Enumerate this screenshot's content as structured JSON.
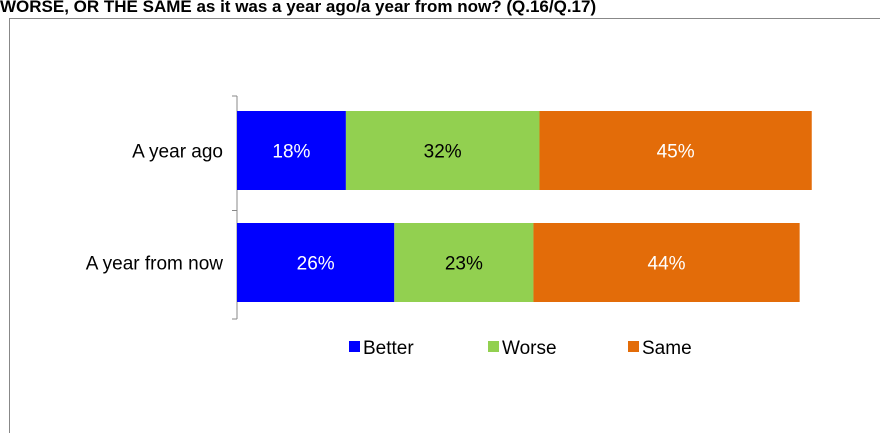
{
  "chart_data": {
    "type": "bar",
    "orientation": "horizontal",
    "stacked": true,
    "title": "WORSE, OR THE SAME as it was a year ago/a year from now? (Q.16/Q.17)",
    "categories": [
      "A year ago",
      "A year from now"
    ],
    "series": [
      {
        "name": "Better",
        "values": [
          18,
          26
        ],
        "labels": [
          "18%",
          "26%"
        ],
        "color": "#0000FF",
        "label_color": "#ffffff"
      },
      {
        "name": "Worse",
        "values": [
          32,
          23
        ],
        "labels": [
          "32%",
          "23%"
        ],
        "color": "#92D050",
        "label_color": "#000000"
      },
      {
        "name": "Same",
        "values": [
          45,
          44
        ],
        "labels": [
          "45%",
          "44%"
        ],
        "color": "#E36C09",
        "label_color": "#ffffff"
      }
    ],
    "xlim": [
      0,
      100
    ],
    "grid": false,
    "legend_position": "bottom"
  }
}
